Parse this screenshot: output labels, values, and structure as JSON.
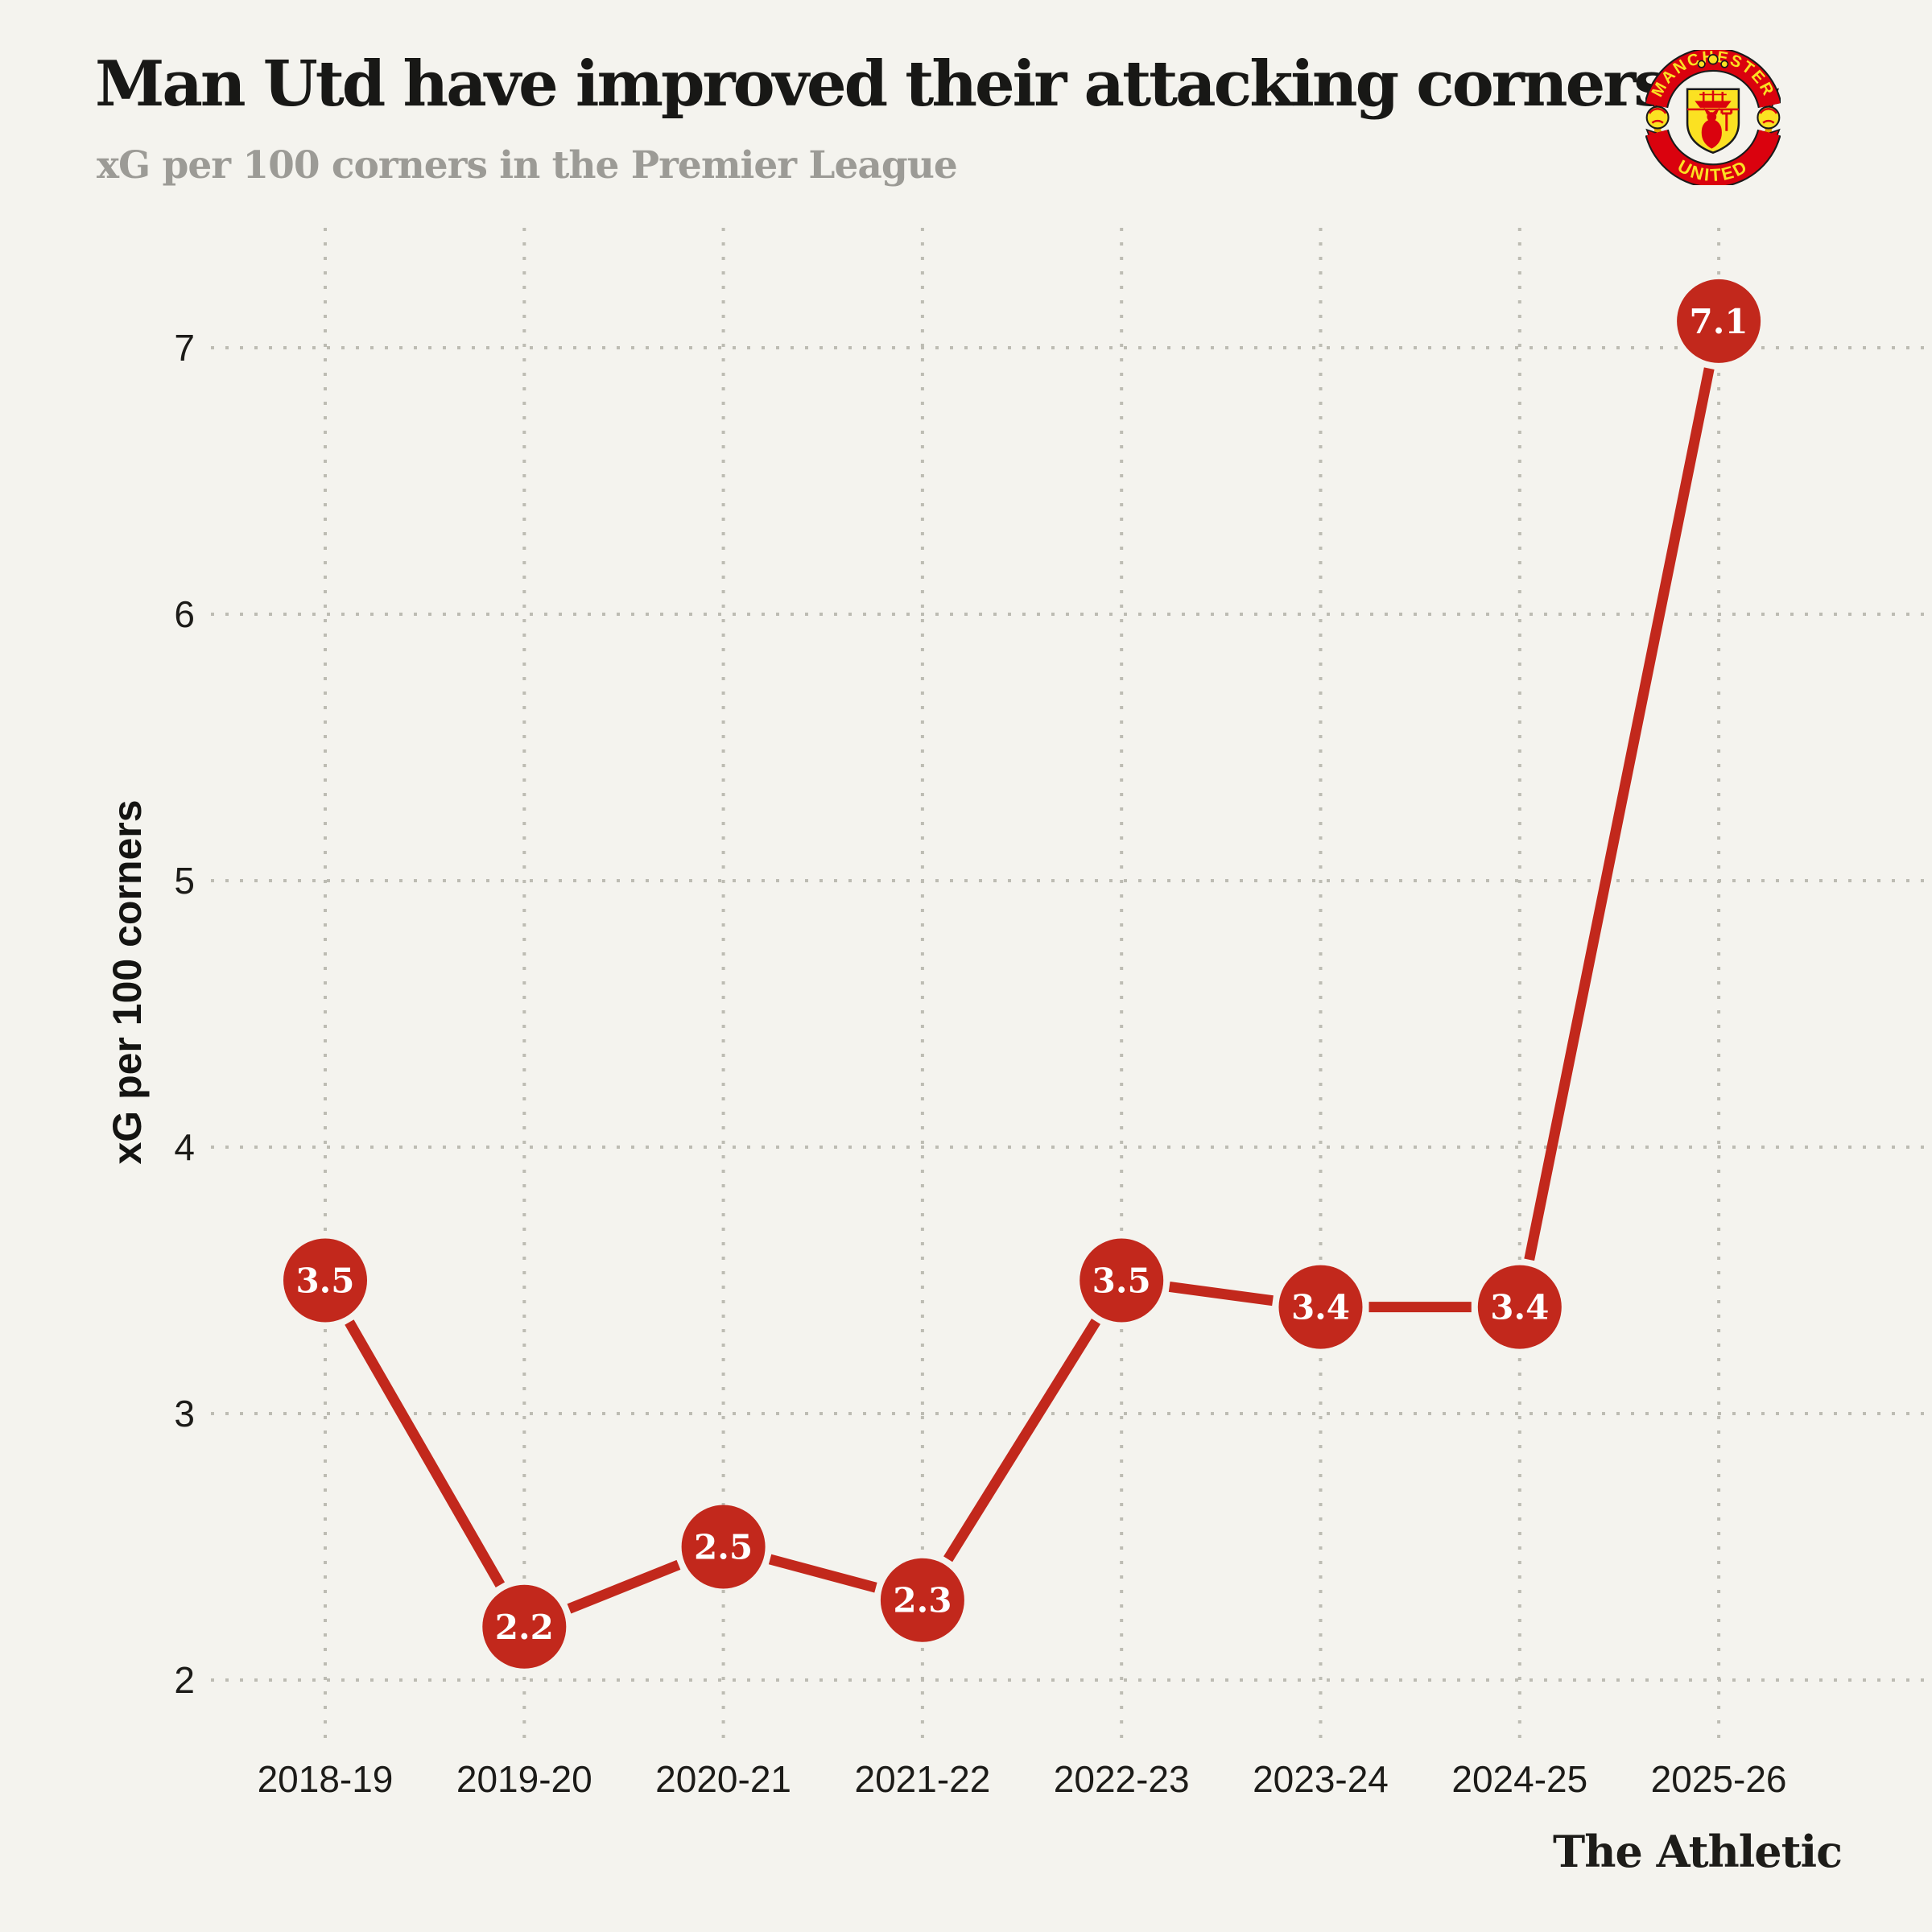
{
  "header": {
    "title": "Man Utd have improved their attacking corners",
    "subtitle": "xG per 100 corners in the Premier League",
    "badge": {
      "name": "manchester-united-crest",
      "top_text": "MANCHESTER",
      "bottom_text": "UNITED",
      "red": "#da020e",
      "yellow": "#fbe122"
    }
  },
  "chart_data": {
    "type": "line",
    "title": "Man Utd have improved their attacking corners",
    "subtitle": "xG per 100 corners in the Premier League",
    "categories": [
      "2018-19",
      "2019-20",
      "2020-21",
      "2021-22",
      "2022-23",
      "2023-24",
      "2024-25",
      "2025-26"
    ],
    "values": [
      3.5,
      2.2,
      2.5,
      2.3,
      3.5,
      3.4,
      3.4,
      7.1
    ],
    "point_labels": [
      "3.5",
      "2.2",
      "2.5",
      "2.3",
      "3.5",
      "3.4",
      "3.4",
      "7.1"
    ],
    "xlabel": "",
    "ylabel": "xG per 100 corners",
    "yticks": [
      2,
      3,
      4,
      5,
      6,
      7
    ],
    "ylim": [
      1.75,
      7.45
    ],
    "grid": "dotted",
    "legend": "none",
    "line_color": "#c2281c",
    "point_color": "#c2281c",
    "point_label_color": "#ffffff",
    "grid_color": "#bdbcb3",
    "tick_color": "#1c1b18",
    "background_color": "#f4f3ee"
  },
  "footer": {
    "brand": "The Athletic"
  }
}
